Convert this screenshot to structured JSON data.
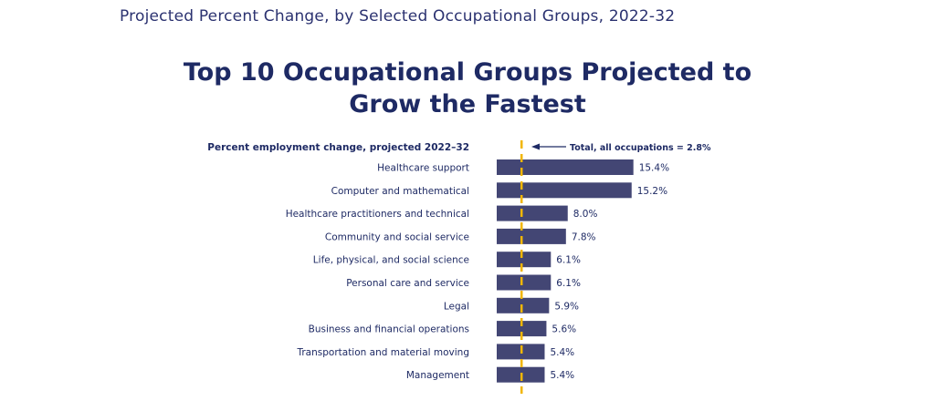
{
  "header": {
    "text": "Projected Percent Change, by Selected Occupational Groups, 2022-32"
  },
  "chart_data": {
    "type": "bar",
    "orientation": "horizontal",
    "title_line1": "Top 10 Occupational Groups Projected to",
    "title_line2": "Grow the Fastest",
    "subtitle": "Percent employment change, projected 2022–32",
    "categories": [
      "Healthcare support",
      "Computer and mathematical",
      "Healthcare practitioners and technical",
      "Community and social service",
      "Life, physical, and social science",
      "Personal care and service",
      "Legal",
      "Business and financial operations",
      "Transportation and material moving",
      "Management"
    ],
    "values": [
      15.4,
      15.2,
      8.0,
      7.8,
      6.1,
      6.1,
      5.9,
      5.6,
      5.4,
      5.4
    ],
    "value_labels": [
      "15.4%",
      "15.2%",
      "8.0%",
      "7.8%",
      "6.1%",
      "6.1%",
      "5.9%",
      "5.6%",
      "5.4%",
      "5.4%"
    ],
    "reference_line": {
      "value": 2.8,
      "label": "Total, all occupations = 2.8%"
    },
    "grid": false,
    "colors": {
      "bar": "#434674",
      "reference": "#f2b600",
      "text": "#1e2a64",
      "arrow": "#1e2a64"
    }
  }
}
